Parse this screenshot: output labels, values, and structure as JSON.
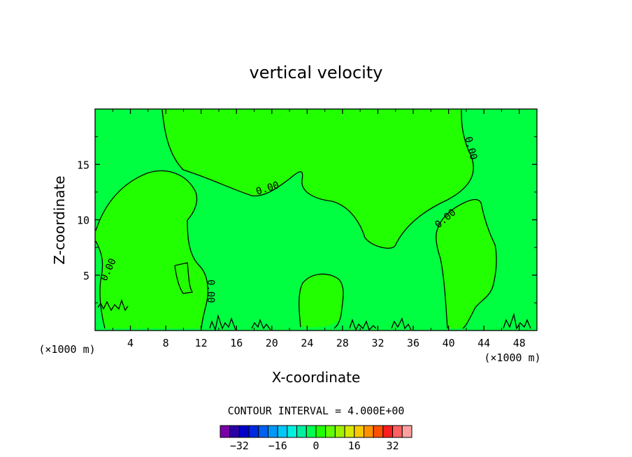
{
  "chart_data": {
    "type": "contour",
    "title": "vertical velocity",
    "xlabel": "X-coordinate",
    "ylabel": "Z-coordinate",
    "x_unit_left": "(×1000 m)",
    "x_unit_right": "(×1000 m)",
    "xlim": [
      0,
      50
    ],
    "ylim": [
      0,
      20
    ],
    "x_ticks": [
      4,
      8,
      12,
      16,
      20,
      24,
      28,
      32,
      36,
      40,
      44,
      48
    ],
    "y_ticks": [
      5,
      10,
      15
    ],
    "contour_label": "0.00",
    "contour_interval_text": "CONTOUR INTERVAL = 4.000E+00",
    "colorbar": {
      "levels": [
        -36,
        -32,
        -28,
        -24,
        -20,
        -16,
        -12,
        -8,
        -4,
        0,
        4,
        8,
        12,
        16,
        20,
        24,
        28,
        32,
        36
      ],
      "tick_labels": [
        "-32",
        "-16",
        "0",
        "16",
        "32"
      ],
      "tick_values": [
        -32,
        -16,
        0,
        16,
        32
      ],
      "colors": [
        "#7a00a8",
        "#2a00a8",
        "#0000c8",
        "#0028e0",
        "#0060f0",
        "#0098f8",
        "#00c8f8",
        "#00f0e0",
        "#00f0a0",
        "#00ff50",
        "#22ff00",
        "#60ff00",
        "#a0f000",
        "#d8e800",
        "#f8c800",
        "#ff9000",
        "#ff5000",
        "#ff1c1c",
        "#ff6060",
        "#ffa0a0"
      ]
    },
    "fill_colors": {
      "positive_region": "#22ff00",
      "negative_region": "#00ff41"
    }
  }
}
